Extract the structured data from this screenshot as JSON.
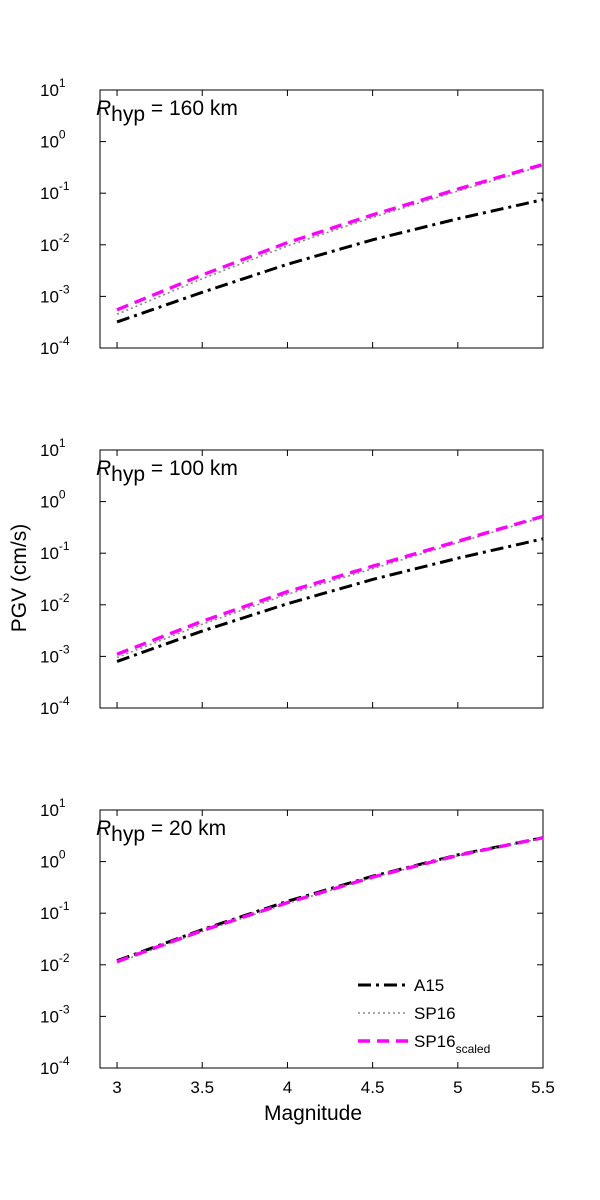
{
  "chart_data": {
    "type": "line",
    "ylabel": "PGV (cm/s)",
    "xlabel": "Magnitude",
    "xlim": [
      2.9,
      5.5
    ],
    "ylim": [
      0.0001,
      10
    ],
    "yscale": "log",
    "x_ticks": [
      "3",
      "3.5",
      "4",
      "4.5",
      "5",
      "5.5"
    ],
    "y_ticks": [
      {
        "base": "10",
        "exp": "-4",
        "value": 0.0001
      },
      {
        "base": "10",
        "exp": "-3",
        "value": 0.001
      },
      {
        "base": "10",
        "exp": "-2",
        "value": 0.01
      },
      {
        "base": "10",
        "exp": "-1",
        "value": 0.1
      },
      {
        "base": "10",
        "exp": "0",
        "value": 1
      },
      {
        "base": "10",
        "exp": "1",
        "value": 10
      }
    ],
    "legend": {
      "placement": "bottom-right",
      "entries": [
        {
          "label": "A15",
          "sub": "",
          "series": "A15"
        },
        {
          "label": "SP16",
          "sub": "",
          "series": "SP16"
        },
        {
          "label": "SP16",
          "sub": "scaled",
          "series": "SP16_scaled"
        }
      ]
    },
    "panels": [
      {
        "title_var": "R",
        "title_sub": "hyp",
        "title_rest": " = 160 km",
        "series": [
          {
            "id": "A15",
            "color": "#000000",
            "style": "dashdot",
            "x": [
              3.0,
              3.5,
              4.0,
              4.5,
              5.0,
              5.5
            ],
            "y": [
              0.00032,
              0.0012,
              0.0042,
              0.0125,
              0.032,
              0.075
            ]
          },
          {
            "id": "SP16",
            "color": "#888888",
            "style": "dotted",
            "x": [
              3.0,
              3.5,
              4.0,
              4.5,
              5.0,
              5.5
            ],
            "y": [
              0.00045,
              0.0022,
              0.0095,
              0.034,
              0.11,
              0.34
            ]
          },
          {
            "id": "SP16_scaled",
            "color": "#ff00ff",
            "style": "dashed",
            "x": [
              3.0,
              3.5,
              4.0,
              4.5,
              5.0,
              5.5
            ],
            "y": [
              0.00055,
              0.0026,
              0.011,
              0.038,
              0.12,
              0.36
            ]
          }
        ]
      },
      {
        "title_var": "R",
        "title_sub": "hyp",
        "title_rest": " = 100 km",
        "series": [
          {
            "id": "A15",
            "color": "#000000",
            "style": "dashdot",
            "x": [
              3.0,
              3.5,
              4.0,
              4.5,
              5.0,
              5.5
            ],
            "y": [
              0.0008,
              0.0031,
              0.0105,
              0.031,
              0.08,
              0.19
            ]
          },
          {
            "id": "SP16",
            "color": "#888888",
            "style": "dotted",
            "x": [
              3.0,
              3.5,
              4.0,
              4.5,
              5.0,
              5.5
            ],
            "y": [
              0.00095,
              0.0042,
              0.016,
              0.05,
              0.16,
              0.5
            ]
          },
          {
            "id": "SP16_scaled",
            "color": "#ff00ff",
            "style": "dashed",
            "x": [
              3.0,
              3.5,
              4.0,
              4.5,
              5.0,
              5.5
            ],
            "y": [
              0.0011,
              0.0048,
              0.018,
              0.056,
              0.17,
              0.52
            ]
          }
        ]
      },
      {
        "title_var": "R",
        "title_sub": "hyp",
        "title_rest": " = 20 km",
        "series": [
          {
            "id": "A15",
            "color": "#000000",
            "style": "dashdot",
            "x": [
              3.0,
              3.5,
              4.0,
              4.5,
              5.0,
              5.5
            ],
            "y": [
              0.012,
              0.048,
              0.17,
              0.52,
              1.35,
              2.9
            ]
          },
          {
            "id": "SP16",
            "color": "#888888",
            "style": "dotted",
            "x": [
              3.0,
              3.5,
              4.0,
              4.5,
              5.0,
              5.5
            ],
            "y": [
              0.011,
              0.044,
              0.155,
              0.49,
              1.3,
              2.85
            ]
          },
          {
            "id": "SP16_scaled",
            "color": "#ff00ff",
            "style": "dashed",
            "x": [
              3.0,
              3.5,
              4.0,
              4.5,
              5.0,
              5.5
            ],
            "y": [
              0.0115,
              0.046,
              0.16,
              0.5,
              1.32,
              2.9
            ]
          }
        ]
      }
    ]
  }
}
